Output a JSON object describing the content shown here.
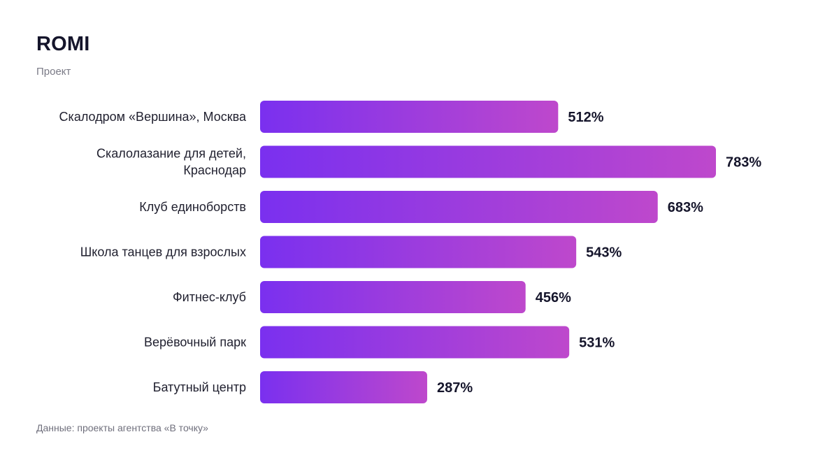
{
  "chart_data": {
    "type": "bar",
    "orientation": "horizontal",
    "title": "ROMI",
    "subtitle": "Проект",
    "source": "Данные: проекты агентства «В точку»",
    "categories": [
      [
        "Скалодром «Вершина», Москва"
      ],
      [
        "Скалолазание для детей,",
        "Краснодар"
      ],
      [
        "Клуб единоборств"
      ],
      [
        "Школа танцев для взрослых"
      ],
      [
        "Фитнес-клуб"
      ],
      [
        "Верёвочный парк"
      ],
      [
        "Батутный центр"
      ]
    ],
    "values": [
      512,
      783,
      683,
      543,
      456,
      531,
      287
    ],
    "value_labels": [
      "512%",
      "783%",
      "683%",
      "543%",
      "456%",
      "531%",
      "287%"
    ],
    "xlim": [
      0,
      783
    ],
    "grid": false,
    "legend": "none",
    "colors": {
      "bar_gradient_start": "#7a30ef",
      "bar_gradient_end": "#be48cc"
    }
  }
}
